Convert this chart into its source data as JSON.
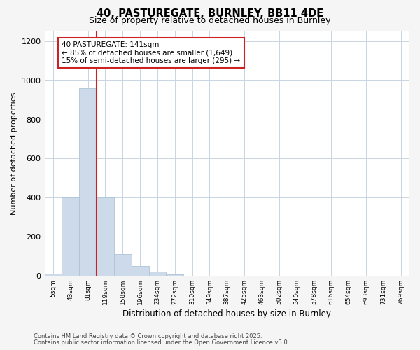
{
  "title1": "40, PASTUREGATE, BURNLEY, BB11 4DE",
  "title2": "Size of property relative to detached houses in Burnley",
  "xlabel": "Distribution of detached houses by size in Burnley",
  "ylabel": "Number of detached properties",
  "bin_labels": [
    "5sqm",
    "43sqm",
    "81sqm",
    "119sqm",
    "158sqm",
    "196sqm",
    "234sqm",
    "272sqm",
    "310sqm",
    "349sqm",
    "387sqm",
    "425sqm",
    "463sqm",
    "502sqm",
    "540sqm",
    "578sqm",
    "616sqm",
    "654sqm",
    "693sqm",
    "731sqm",
    "769sqm"
  ],
  "bar_heights": [
    10,
    400,
    960,
    400,
    110,
    50,
    20,
    5,
    0,
    0,
    0,
    0,
    0,
    0,
    0,
    0,
    0,
    0,
    0,
    0,
    0
  ],
  "bar_color": "#cddaea",
  "bar_edge_color": "#adc4d8",
  "property_line_bin": 2,
  "property_line_color": "#cc2222",
  "annotation_text": "40 PASTUREGATE: 141sqm\n← 85% of detached houses are smaller (1,649)\n15% of semi-detached houses are larger (295) →",
  "annotation_box_color": "#cc2222",
  "ylim": [
    0,
    1250
  ],
  "yticks": [
    0,
    200,
    400,
    600,
    800,
    1000,
    1200
  ],
  "footnote1": "Contains HM Land Registry data © Crown copyright and database right 2025.",
  "footnote2": "Contains public sector information licensed under the Open Government Licence v3.0.",
  "bg_color": "#f5f5f5",
  "plot_bg_color": "#ffffff",
  "grid_color": "#c8d4e0"
}
